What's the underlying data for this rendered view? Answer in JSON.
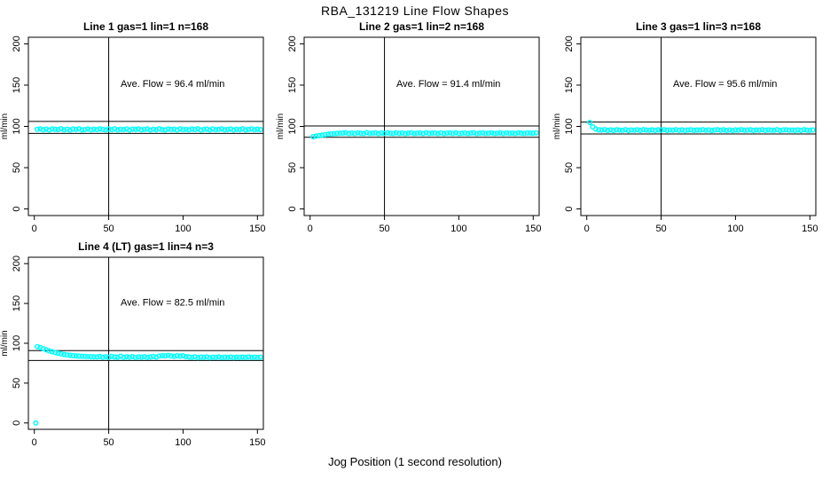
{
  "title": "RBA_131219  Line Flow Shapes",
  "xlabel": "Jog Position (1 second resolution)",
  "chart_data": {
    "type": "scatter",
    "point_color": "#00FFFF",
    "line_color": "#000000",
    "axes": {
      "xlim": [
        -4,
        154
      ],
      "ylim": [
        -8,
        208
      ],
      "xticks": [
        0,
        50,
        100,
        150
      ],
      "yticks": [
        0,
        50,
        100,
        150,
        200
      ],
      "ylabel": "ml/min"
    },
    "plots": [
      {
        "title": "Line 1 gas=1 lin=1 n=168",
        "annotation": "Ave. Flow =  96.4  ml/min",
        "ave_flow": 96.4,
        "ref_upper": 106.0,
        "ref_lower": 91.6,
        "vline_x": 50,
        "series": {
          "x_start": 2,
          "x_step": 2,
          "y": [
            96.5,
            97.0,
            96.0,
            96.7,
            95.7,
            96.9,
            96.4,
            96.1,
            97.2,
            95.9,
            96.6,
            95.6,
            96.8,
            96.3,
            97.1,
            95.8,
            96.2,
            96.9,
            95.9,
            96.6,
            96.1,
            97.0,
            96.4,
            95.7,
            96.8,
            96.0,
            97.1,
            95.8,
            96.5,
            96.2,
            96.9,
            95.6,
            96.7,
            96.3,
            97.0,
            95.9,
            96.4,
            96.8,
            95.7,
            96.5,
            96.0,
            97.1,
            96.2,
            95.8,
            96.9,
            96.3,
            96.6,
            95.7,
            97.0,
            96.1,
            96.5,
            95.9,
            96.8,
            96.2,
            97.1,
            95.6,
            96.4,
            96.7,
            95.8,
            96.9,
            96.0,
            96.5,
            97.0,
            95.9,
            96.3,
            96.8,
            95.7,
            96.6,
            96.1,
            97.1,
            95.8,
            96.4,
            96.9,
            96.0,
            96.6,
            96.2
          ]
        },
        "extra_points": []
      },
      {
        "title": "Line 2 gas=1 lin=2 n=168",
        "annotation": "Ave. Flow =  91.4  ml/min",
        "ave_flow": 91.4,
        "ref_upper": 100.5,
        "ref_lower": 86.8,
        "vline_x": 50,
        "series": {
          "x_start": 2,
          "x_step": 2,
          "y": [
            87.6,
            88.2,
            88.8,
            89.4,
            90.0,
            90.5,
            90.9,
            91.2,
            91.5,
            91.7,
            91.9,
            92.3,
            91.5,
            92.0,
            91.3,
            92.2,
            91.7,
            91.4,
            92.4,
            91.6,
            91.8,
            92.1,
            91.3,
            92.0,
            91.5,
            92.3,
            91.7,
            91.4,
            92.2,
            91.6,
            92.0,
            91.3,
            91.9,
            92.2,
            91.5,
            91.8,
            92.1,
            91.4,
            92.3,
            91.6,
            91.9,
            92.0,
            91.5,
            92.2,
            91.3,
            91.8,
            92.1,
            91.6,
            92.3,
            91.4,
            91.7,
            92.0,
            91.5,
            91.9,
            92.2,
            91.3,
            91.8,
            92.1,
            91.6,
            91.9,
            92.2,
            91.5,
            91.8,
            92.0,
            91.4,
            92.1,
            91.7,
            91.9,
            91.5,
            92.2,
            91.8,
            91.6,
            92.0,
            91.9,
            91.7,
            92.1
          ]
        },
        "extra_points": []
      },
      {
        "title": "Line 3 gas=1 lin=3 n=168",
        "annotation": "Ave. Flow =  95.6  ml/min",
        "ave_flow": 95.6,
        "ref_upper": 105.2,
        "ref_lower": 90.8,
        "vline_x": 50,
        "series": {
          "x_start": 2,
          "x_step": 2,
          "y": [
            104.8,
            99.5,
            96.8,
            95.9,
            95.6,
            96.0,
            95.2,
            95.8,
            95.1,
            95.9,
            95.5,
            95.3,
            96.1,
            95.0,
            95.7,
            95.4,
            95.9,
            95.2,
            96.0,
            95.6,
            95.3,
            95.8,
            95.1,
            95.9,
            95.5,
            96.1,
            95.2,
            95.7,
            95.4,
            96.0,
            95.3,
            95.8,
            95.0,
            95.6,
            95.9,
            95.2,
            95.7,
            95.5,
            96.1,
            95.3,
            95.8,
            95.1,
            95.6,
            96.0,
            95.4,
            95.9,
            95.2,
            95.7,
            95.0,
            95.8,
            95.5,
            96.1,
            95.3,
            95.6,
            95.9,
            95.1,
            95.7,
            95.4,
            96.0,
            95.2,
            95.8,
            95.5,
            95.3,
            96.1,
            95.0,
            95.7,
            95.9,
            95.4,
            95.6,
            95.2,
            95.8,
            95.1,
            96.0,
            95.5,
            95.3,
            95.7
          ]
        },
        "extra_points": []
      },
      {
        "title": "Line 4 (LT) gas=1 lin=4 n=3",
        "annotation": "Ave. Flow =  82.5  ml/min",
        "ave_flow": 82.5,
        "ref_upper": 90.8,
        "ref_lower": 78.4,
        "vline_x": 50,
        "series": {
          "x_start": 2,
          "x_step": 2,
          "y": [
            95.8,
            94.6,
            93.2,
            91.8,
            90.5,
            89.4,
            88.4,
            87.5,
            86.7,
            86.0,
            85.4,
            84.9,
            84.5,
            84.2,
            83.9,
            83.7,
            83.5,
            83.3,
            83.2,
            83.0,
            82.9,
            83.4,
            82.5,
            83.1,
            82.3,
            83.6,
            82.8,
            82.4,
            83.8,
            82.2,
            83.0,
            82.6,
            83.3,
            82.1,
            82.9,
            82.5,
            83.2,
            82.3,
            82.8,
            83.5,
            82.6,
            84.0,
            84.5,
            84.2,
            84.8,
            84.1,
            83.6,
            84.3,
            83.9,
            84.4,
            83.2,
            82.8,
            82.3,
            83.1,
            82.0,
            82.7,
            82.4,
            83.0,
            81.9,
            82.6,
            82.2,
            82.9,
            82.1,
            82.5,
            82.3,
            82.8,
            82.0,
            82.6,
            82.4,
            82.7,
            82.1,
            82.9,
            82.3,
            82.6,
            82.2,
            82.5
          ]
        },
        "extra_points": [
          [
            1,
            0
          ]
        ]
      }
    ]
  }
}
